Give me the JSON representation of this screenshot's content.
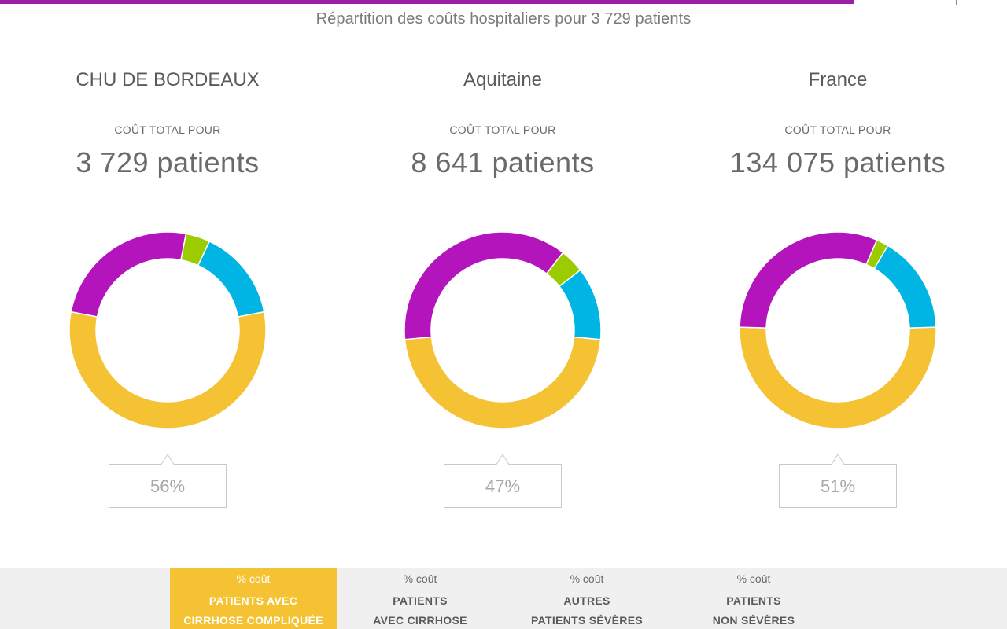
{
  "header": {
    "subtitle": "Répartition des coûts hospitaliers pour 3 729 patients",
    "accent_color": "#9b1ea6"
  },
  "colors": {
    "cirrhose_compliquee": "#f4c233",
    "cirrhose": "#b414bc",
    "autres_severes": "#9ccc00",
    "non_severes": "#00b4e4"
  },
  "chart_data": [
    {
      "type": "pie",
      "title": "CHU DE BORDEAUX",
      "cost_label": "COÛT TOTAL POUR",
      "patients": "3 729 patients",
      "highlight_label": "56%",
      "slices": [
        {
          "name": "PATIENTS AVEC CIRRHOSE COMPLIQUÉE",
          "value": 56
        },
        {
          "name": "PATIENTS AVEC CIRRHOSE",
          "value": 25
        },
        {
          "name": "AUTRES PATIENTS SÉVÈRES",
          "value": 4
        },
        {
          "name": "PATIENTS NON SÉVÈRES",
          "value": 15
        }
      ]
    },
    {
      "type": "pie",
      "title": "Aquitaine",
      "cost_label": "COÛT TOTAL POUR",
      "patients": "8 641 patients",
      "highlight_label": "47%",
      "slices": [
        {
          "name": "PATIENTS AVEC CIRRHOSE COMPLIQUÉE",
          "value": 47
        },
        {
          "name": "PATIENTS AVEC CIRRHOSE",
          "value": 37
        },
        {
          "name": "AUTRES PATIENTS SÉVÈRES",
          "value": 4
        },
        {
          "name": "PATIENTS NON SÉVÈRES",
          "value": 12
        }
      ]
    },
    {
      "type": "pie",
      "title": "France",
      "cost_label": "COÛT TOTAL POUR",
      "patients": "134 075 patients",
      "highlight_label": "51%",
      "slices": [
        {
          "name": "PATIENTS AVEC CIRRHOSE COMPLIQUÉE",
          "value": 51
        },
        {
          "name": "PATIENTS AVEC CIRRHOSE",
          "value": 31
        },
        {
          "name": "AUTRES PATIENTS SÉVÈRES",
          "value": 2
        },
        {
          "name": "PATIENTS NON SÉVÈRES",
          "value": 16
        }
      ]
    }
  ],
  "legend": {
    "items": [
      {
        "small": "% coût",
        "line1": "PATIENTS AVEC",
        "line2": "CIRRHOSE COMPLIQUÉE",
        "active": true
      },
      {
        "small": "% coût",
        "line1": "PATIENTS",
        "line2": "AVEC CIRRHOSE",
        "active": false
      },
      {
        "small": "% coût",
        "line1": "AUTRES",
        "line2": "PATIENTS SÉVÈRES",
        "active": false
      },
      {
        "small": "% coût",
        "line1": "PATIENTS",
        "line2": "NON SÉVÈRES",
        "active": false
      }
    ]
  }
}
